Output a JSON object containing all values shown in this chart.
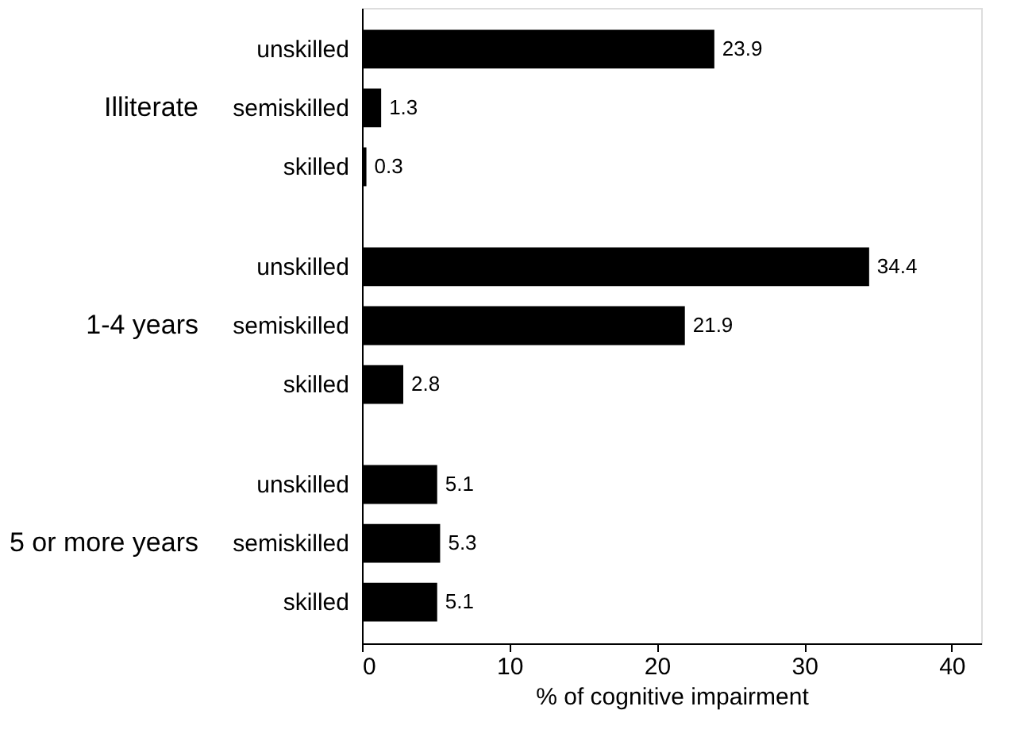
{
  "chart_data": {
    "type": "bar",
    "orientation": "horizontal",
    "categories": [
      "unskilled",
      "semiskilled",
      "skilled",
      "unskilled",
      "semiskilled",
      "skilled",
      "unskilled",
      "semiskilled",
      "skilled"
    ],
    "values": [
      23.9,
      1.3,
      0.3,
      34.4,
      21.9,
      2.8,
      5.1,
      5.3,
      5.1
    ],
    "color": "#000000",
    "xlim": [
      0,
      42
    ],
    "xticks": [
      0,
      10,
      20,
      30,
      40
    ],
    "xlabel": "% of cognitive impairment",
    "annotations": [
      "Illiterate",
      "1-4 years",
      "5 or more years"
    ],
    "data_labels": true,
    "grid": false
  }
}
